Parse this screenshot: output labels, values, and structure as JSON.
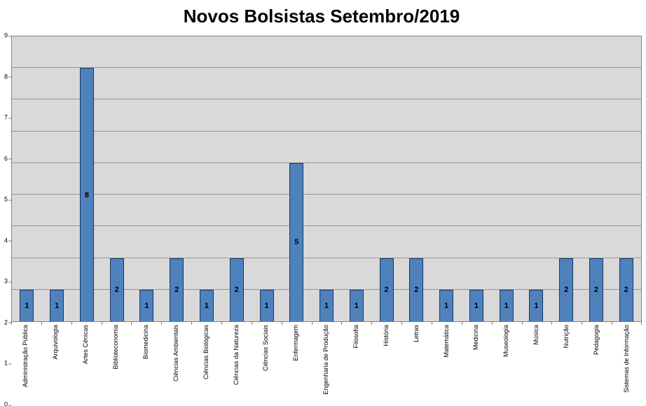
{
  "chart_data": {
    "type": "bar",
    "title": "Novos Bolsistas Setembro/2019",
    "categories": [
      "Administração Pública",
      "Arquivologia",
      "Artes Cênicas",
      "Biblioteconomia",
      "Biomedicina",
      "Ciências Ambientais",
      "Ciências Biológicas",
      "Ciências da Natureza",
      "Ciências Sociais",
      "Enfermagem",
      "Engenharia de Produção",
      "Filosofia",
      "História",
      "Letras",
      "Matemática",
      "Medicina",
      "Museologia",
      "Música",
      "Nutrição",
      "Pedagogia",
      "Sistemas de Informação"
    ],
    "values": [
      1,
      1,
      8,
      2,
      1,
      2,
      1,
      2,
      1,
      5,
      1,
      1,
      2,
      2,
      1,
      1,
      1,
      1,
      2,
      2,
      2
    ],
    "xlabel": "",
    "ylabel": "",
    "ylim": [
      0,
      9
    ],
    "ytick_interval": 1,
    "yticks": [
      0,
      1,
      2,
      3,
      4,
      5,
      6,
      7,
      8,
      9
    ],
    "grid": true,
    "legend": false,
    "data_labels": true,
    "data_label_position": "center",
    "colors": {
      "bar_fill": "#4F81BD",
      "bar_border": "#17375D",
      "plot_bg": "#D9D9D9",
      "gridline": "#969696",
      "axis": "#808080",
      "title": "#000000",
      "label": "#000000"
    }
  }
}
